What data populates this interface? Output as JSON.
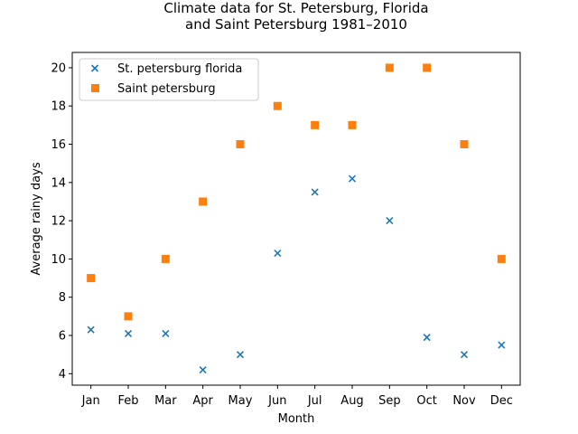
{
  "chart_data": {
    "type": "scatter",
    "title_lines": [
      "Climate data for St. Petersburg, Florida",
      "and Saint Petersburg 1981–2010"
    ],
    "xlabel": "Month",
    "ylabel": "Average rainy days",
    "categories": [
      "Jan",
      "Feb",
      "Mar",
      "Apr",
      "May",
      "Jun",
      "Jul",
      "Aug",
      "Sep",
      "Oct",
      "Nov",
      "Dec"
    ],
    "ylim": [
      3.4,
      20.8
    ],
    "yticks": [
      4,
      6,
      8,
      10,
      12,
      14,
      16,
      18,
      20
    ],
    "grid": false,
    "legend_position": "top-left",
    "series": [
      {
        "name": "St. petersburg florida",
        "marker": "x",
        "color": "#1f77b4",
        "values": [
          6.3,
          6.1,
          6.1,
          4.2,
          5.0,
          10.3,
          13.5,
          14.2,
          12.0,
          5.9,
          5.0,
          5.5
        ]
      },
      {
        "name": "Saint petersburg",
        "marker": "square",
        "color": "#ff7f0e",
        "values": [
          9,
          7,
          10,
          13,
          16,
          18,
          17,
          17,
          20,
          20,
          16,
          10
        ]
      }
    ]
  }
}
